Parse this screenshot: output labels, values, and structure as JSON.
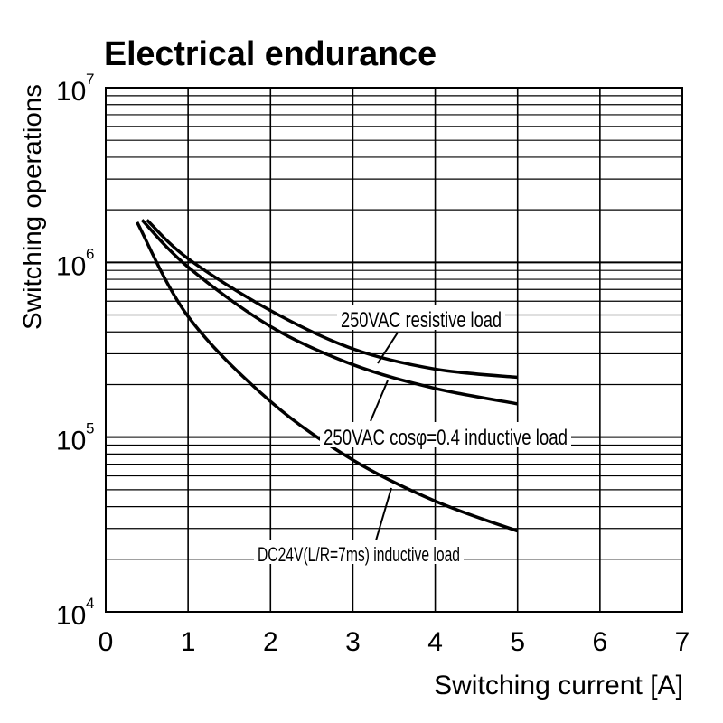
{
  "chart_data": {
    "type": "line",
    "title": "Electrical endurance",
    "xlabel": "Switching current [A]",
    "ylabel": "Switching operations",
    "xlim": [
      0,
      7
    ],
    "ylim": [
      10000,
      10000000
    ],
    "yscale": "log",
    "grid": true,
    "x_ticks": [
      "0",
      "1",
      "2",
      "3",
      "4",
      "5",
      "6",
      "7"
    ],
    "y_ticks": [
      {
        "base": "10",
        "exp": "4",
        "value": 10000
      },
      {
        "base": "10",
        "exp": "5",
        "value": 100000
      },
      {
        "base": "10",
        "exp": "6",
        "value": 1000000
      },
      {
        "base": "10",
        "exp": "7",
        "value": 10000000
      }
    ],
    "series": [
      {
        "name": "250VAC resistive load",
        "x": [
          0.5,
          1,
          2,
          3,
          4,
          5
        ],
        "y": [
          1750000,
          1050000,
          530000,
          320000,
          245000,
          220000
        ]
      },
      {
        "name": "250VAC cosφ=0.4 inductive load",
        "x": [
          0.44,
          1,
          2,
          3,
          4,
          5
        ],
        "y": [
          1750000,
          940000,
          430000,
          260000,
          190000,
          155000
        ]
      },
      {
        "name": "DC24V(L/R=7ms) inductive load",
        "x": [
          0.38,
          1,
          2,
          3,
          4,
          5
        ],
        "y": [
          1700000,
          490000,
          160000,
          74000,
          43000,
          29000
        ]
      }
    ],
    "colors": {
      "line": "#000000",
      "background": "#ffffff"
    }
  }
}
